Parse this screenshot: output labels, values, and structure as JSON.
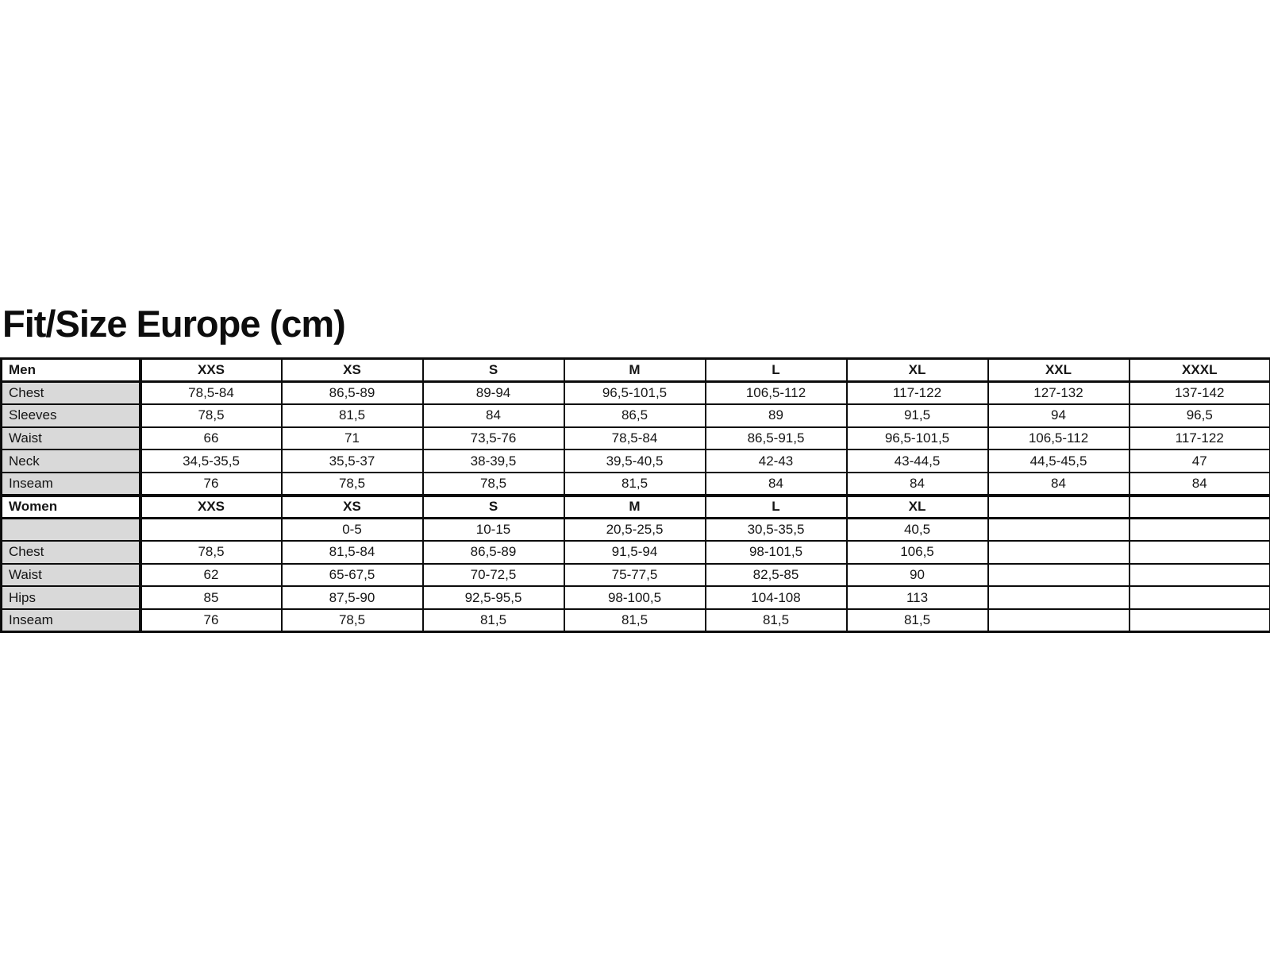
{
  "page": {
    "title": "Fit/Size Europe (cm)"
  },
  "colors": {
    "label_bg": "#d9d9d9",
    "border": "#000000",
    "text": "#151515"
  },
  "table": {
    "sections": [
      {
        "header_label": "Men",
        "sizes": [
          "XXS",
          "XS",
          "S",
          "M",
          "L",
          "XL",
          "XXL",
          "XXXL"
        ],
        "rows": [
          {
            "label": "Chest",
            "values": [
              "78,5-84",
              "86,5-89",
              "89-94",
              "96,5-101,5",
              "106,5-112",
              "117-122",
              "127-132",
              "137-142"
            ]
          },
          {
            "label": "Sleeves",
            "values": [
              "78,5",
              "81,5",
              "84",
              "86,5",
              "89",
              "91,5",
              "94",
              "96,5"
            ]
          },
          {
            "label": "Waist",
            "values": [
              "66",
              "71",
              "73,5-76",
              "78,5-84",
              "86,5-91,5",
              "96,5-101,5",
              "106,5-112",
              "117-122"
            ]
          },
          {
            "label": "Neck",
            "values": [
              "34,5-35,5",
              "35,5-37",
              "38-39,5",
              "39,5-40,5",
              "42-43",
              "43-44,5",
              "44,5-45,5",
              "47"
            ]
          },
          {
            "label": "Inseam",
            "values": [
              "76",
              "78,5",
              "78,5",
              "81,5",
              "84",
              "84",
              "84",
              "84"
            ]
          }
        ]
      },
      {
        "header_label": "Women",
        "sizes": [
          "XXS",
          "XS",
          "S",
          "M",
          "L",
          "XL",
          "",
          ""
        ],
        "rows": [
          {
            "label": "",
            "values": [
              "",
              "0-5",
              "10-15",
              "20,5-25,5",
              "30,5-35,5",
              "40,5",
              "",
              ""
            ]
          },
          {
            "label": "Chest",
            "values": [
              "78,5",
              "81,5-84",
              "86,5-89",
              "91,5-94",
              "98-101,5",
              "106,5",
              "",
              ""
            ]
          },
          {
            "label": "Waist",
            "values": [
              "62",
              "65-67,5",
              "70-72,5",
              "75-77,5",
              "82,5-85",
              "90",
              "",
              ""
            ]
          },
          {
            "label": "Hips",
            "values": [
              "85",
              "87,5-90",
              "92,5-95,5",
              "98-100,5",
              "104-108",
              "113",
              "",
              ""
            ]
          },
          {
            "label": "Inseam",
            "values": [
              "76",
              "78,5",
              "81,5",
              "81,5",
              "81,5",
              "81,5",
              "",
              ""
            ]
          }
        ]
      }
    ]
  }
}
